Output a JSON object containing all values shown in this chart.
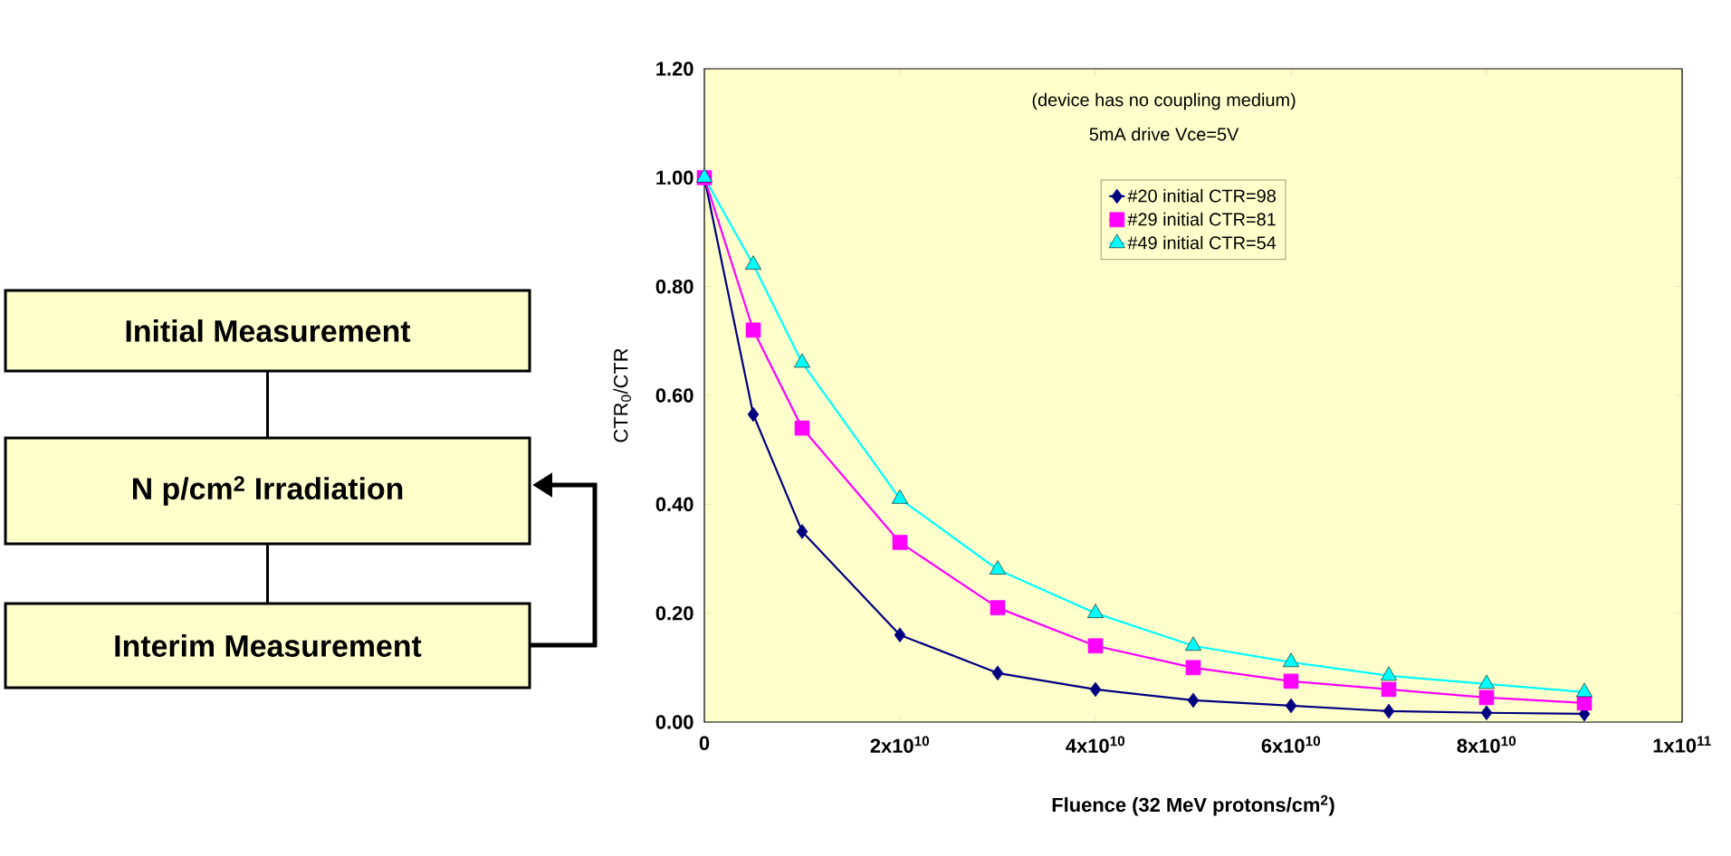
{
  "chart_data": [
    {
      "type": "other",
      "annotations": [
        "Initial Measurement",
        "N p/cm$^{2}$  Irradiation",
        "Interim Measurement"
      ]
    },
    {
      "type": "line",
      "annotations": [
        "(device has no coupling medium)",
        "5mA drive Vce=5V"
      ],
      "xlabel": "Fluence (32 MeV protons/cm$^{2}$)",
      "ylabel": "CTR$_{0}$/CTR",
      "x": [
        0,
        5000000000.0,
        10000000000.0,
        20000000000.0,
        30000000000.0,
        40000000000.0,
        50000000000.0,
        60000000000.0,
        70000000000.0,
        80000000000.0,
        90000000000.0
      ],
      "series": [
        {
          "name": "#20 initial CTR=98",
          "color": "#000080",
          "marker": "diamond",
          "values": [
            1.0,
            0.565,
            0.35,
            0.16,
            0.09,
            0.06,
            0.04,
            0.03,
            0.02,
            0.017,
            0.015
          ]
        },
        {
          "name": "#29 initial CTR=81",
          "color": "#ff00ff",
          "marker": "square",
          "values": [
            1.0,
            0.72,
            0.54,
            0.33,
            0.21,
            0.14,
            0.1,
            0.075,
            0.06,
            0.045,
            0.035
          ]
        },
        {
          "name": "#49 initial CTR=54",
          "color": "#00ffff",
          "marker": "triangle",
          "values": [
            1.0,
            0.84,
            0.66,
            0.41,
            0.28,
            0.2,
            0.14,
            0.11,
            0.085,
            0.07,
            0.055
          ]
        }
      ],
      "xlim": [
        0,
        100000000000.0
      ],
      "ylim": [
        0,
        1.2
      ],
      "xticks": [
        0,
        {
          "value": 20000000000.0,
          "label": "2x10$^{10}$"
        },
        {
          "value": 40000000000.0,
          "label": "4x10$^{10}$"
        },
        {
          "value": 60000000000.0,
          "label": "6x10$^{10}$"
        },
        {
          "value": 80000000000.0,
          "label": "8x10$^{10}$"
        },
        {
          "value": 100000000000.0,
          "label": "1x10$^{11}$"
        }
      ],
      "yticks": [
        {
          "value": 0,
          "label": "0.00"
        },
        {
          "value": 0.2,
          "label": "0.20"
        },
        {
          "value": 0.4,
          "label": "0.40"
        },
        {
          "value": 0.6,
          "label": "0.60"
        },
        {
          "value": 0.8,
          "label": "0.80"
        },
        {
          "value": 1.0,
          "label": "1.00"
        },
        {
          "value": 1.2,
          "label": "1.20"
        }
      ],
      "grid": false,
      "legend": "top",
      "line_style": "solid"
    }
  ]
}
